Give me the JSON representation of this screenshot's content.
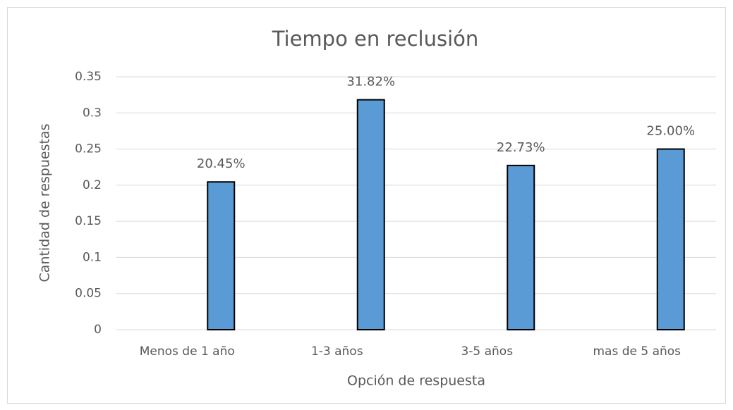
{
  "chart_data": {
    "type": "bar",
    "title": "Tiempo en reclusión",
    "x_label": "Opción de respuesta",
    "y_label": "Cantidad de respuestas",
    "categories": [
      "Menos de 1 año",
      "1-3 años",
      "3-5 años",
      "mas de 5 años"
    ],
    "values": [
      0.2045,
      0.3182,
      0.2273,
      0.25
    ],
    "value_labels": [
      "20.45%",
      "31.82%",
      "22.73%",
      "25.00%"
    ],
    "color": "#5b9bd5",
    "ylim": [
      0,
      0.35
    ],
    "yticks": [
      0,
      0.05,
      0.1,
      0.15,
      0.2,
      0.25,
      0.3,
      0.35
    ],
    "grid": true
  }
}
